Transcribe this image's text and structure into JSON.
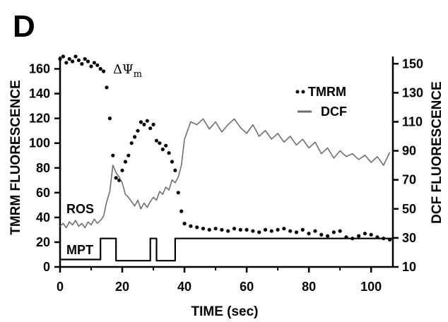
{
  "panel_label": "D",
  "chart_data": {
    "type": "line",
    "xlabel": "TIME (sec)",
    "ylabel_left": "TMRM FLUORESCENCE",
    "ylabel_right": "DCF FLUORESCENCE",
    "xlim": [
      0,
      107
    ],
    "ylim_left": [
      0,
      170
    ],
    "ylim_right": [
      10,
      155
    ],
    "xticks": [
      "0",
      "20",
      "40",
      "60",
      "80",
      "100"
    ],
    "yticks_left": [
      "0",
      "20",
      "40",
      "60",
      "80",
      "100",
      "120",
      "140",
      "160"
    ],
    "yticks_right": [
      "10",
      "30",
      "50",
      "70",
      "90",
      "110",
      "130",
      "150"
    ],
    "annotations": {
      "ros": "ROS",
      "mpt": "MPT",
      "delta_psi": "ΔΨ",
      "delta_psi_sub": "m"
    },
    "legend": {
      "position": "top-right",
      "tmrm": "TMRM",
      "dcf": "DCF"
    },
    "series": [
      {
        "name": "TMRM",
        "axis": "left",
        "style": "dots",
        "x": [
          0,
          1,
          2,
          3,
          4,
          5,
          6,
          7,
          8,
          9,
          10,
          11,
          12,
          13,
          14,
          15,
          16,
          17,
          18,
          19,
          20,
          21,
          22,
          23,
          24,
          25,
          26,
          27,
          28,
          29,
          30,
          31,
          32,
          33,
          34,
          35,
          36,
          37,
          38,
          39,
          40,
          42,
          44,
          46,
          48,
          50,
          52,
          54,
          56,
          58,
          60,
          62,
          64,
          66,
          68,
          70,
          72,
          74,
          76,
          78,
          80,
          82,
          84,
          86,
          88,
          90,
          92,
          94,
          96,
          98,
          100,
          102,
          104,
          106
        ],
        "y": [
          168,
          170,
          165,
          168,
          166,
          170,
          167,
          164,
          168,
          166,
          162,
          165,
          163,
          160,
          158,
          145,
          120,
          90,
          72,
          70,
          78,
          85,
          90,
          100,
          105,
          110,
          117,
          115,
          118,
          112,
          115,
          102,
          100,
          95,
          98,
          92,
          85,
          78,
          60,
          45,
          35,
          33,
          32,
          31,
          30,
          31,
          30,
          29,
          31,
          30,
          30,
          29,
          28,
          30,
          29,
          30,
          31,
          29,
          28,
          30,
          27,
          29,
          26,
          25,
          28,
          29,
          24,
          23,
          25,
          27,
          26,
          24,
          23,
          22
        ]
      },
      {
        "name": "DCF",
        "axis": "right",
        "style": "line",
        "x": [
          0,
          1,
          2,
          3,
          4,
          5,
          6,
          7,
          8,
          9,
          10,
          11,
          12,
          13,
          14,
          15,
          16,
          17,
          18,
          19,
          20,
          21,
          22,
          23,
          24,
          25,
          26,
          27,
          28,
          29,
          30,
          31,
          32,
          33,
          34,
          35,
          36,
          37,
          38,
          39,
          40,
          42,
          44,
          46,
          48,
          50,
          52,
          54,
          56,
          58,
          60,
          62,
          64,
          66,
          68,
          70,
          72,
          74,
          76,
          78,
          80,
          82,
          84,
          86,
          88,
          90,
          92,
          94,
          96,
          98,
          100,
          102,
          104,
          106
        ],
        "y": [
          38,
          40,
          37,
          41,
          39,
          42,
          38,
          40,
          37,
          41,
          39,
          43,
          40,
          42,
          45,
          55,
          62,
          80,
          75,
          72,
          68,
          60,
          58,
          55,
          52,
          56,
          50,
          54,
          51,
          55,
          58,
          56,
          62,
          60,
          65,
          63,
          70,
          68,
          72,
          80,
          98,
          110,
          108,
          112,
          105,
          110,
          103,
          108,
          112,
          106,
          102,
          108,
          100,
          104,
          98,
          102,
          96,
          100,
          94,
          98,
          92,
          96,
          88,
          92,
          85,
          90,
          86,
          88,
          84,
          87,
          82,
          86,
          80,
          89
        ]
      },
      {
        "name": "MPT",
        "axis": "left",
        "style": "step",
        "x": [
          0,
          13,
          13,
          18,
          18,
          29,
          29,
          31,
          31,
          37,
          37,
          107
        ],
        "y": [
          6,
          6,
          23,
          23,
          5,
          5,
          23,
          23,
          5,
          5,
          23,
          23
        ]
      }
    ]
  }
}
